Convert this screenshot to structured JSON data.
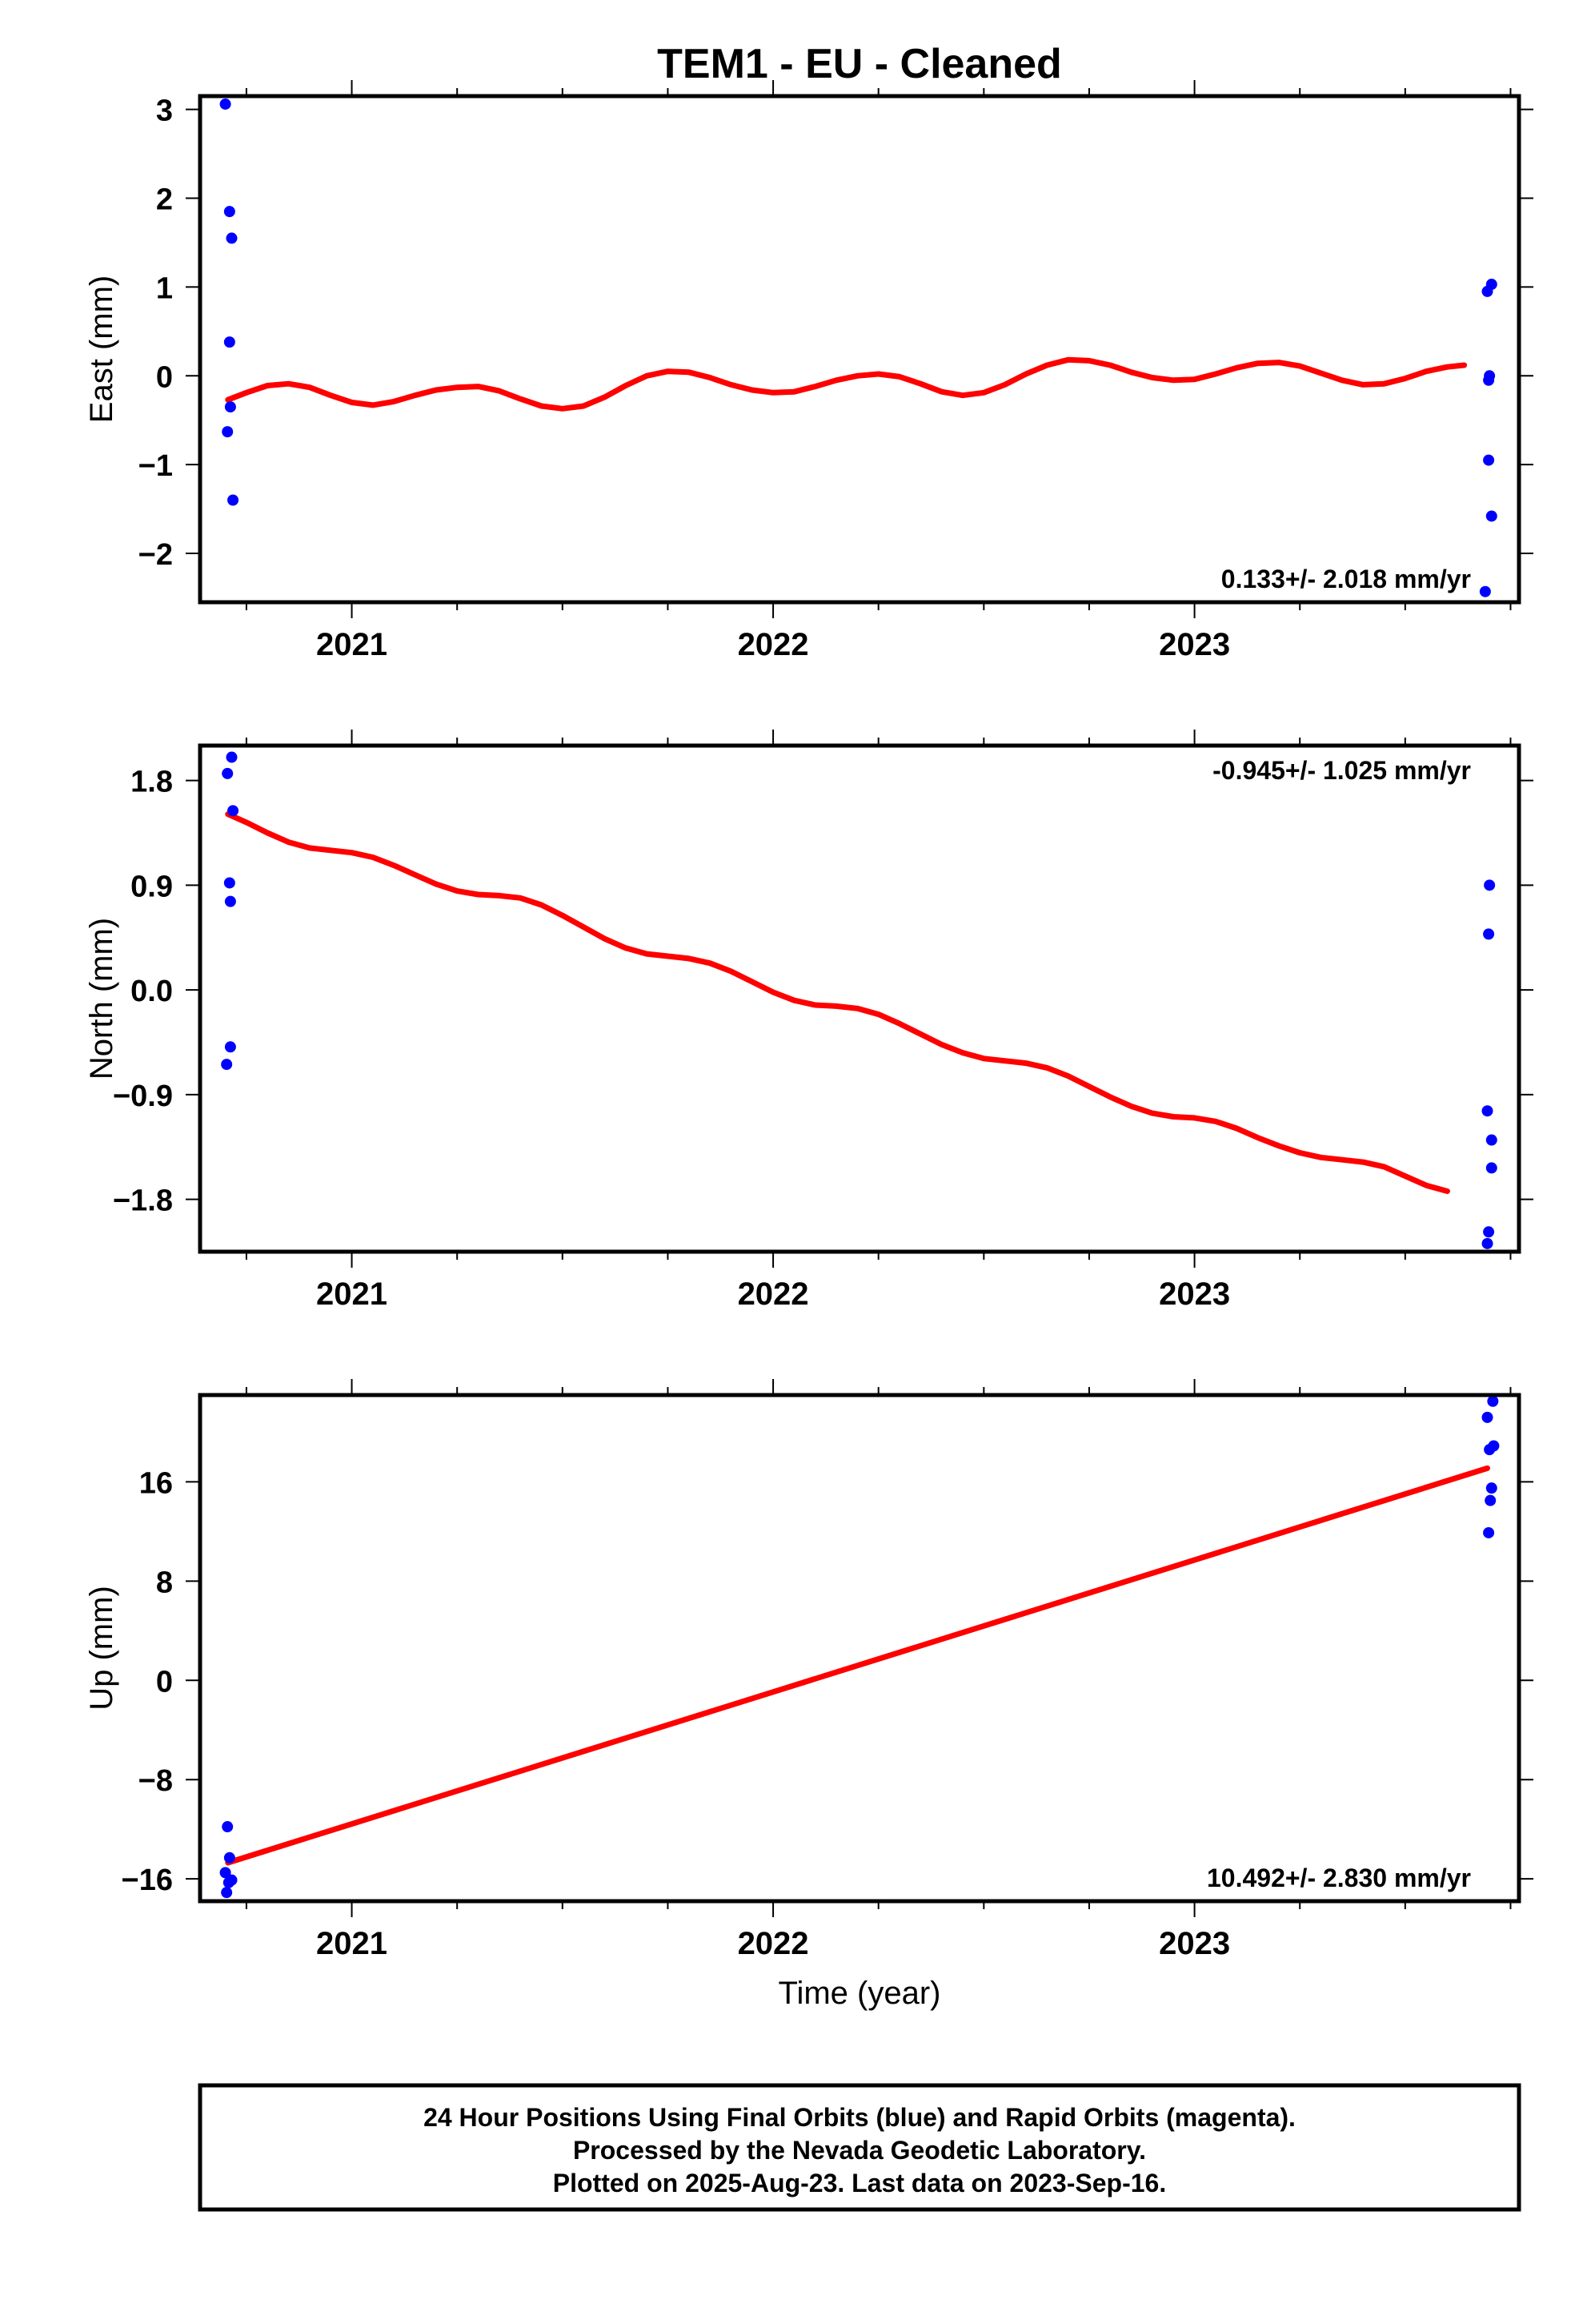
{
  "title": "TEM1  - EU - Cleaned",
  "footer": {
    "lines": [
      "24 Hour Positions Using Final Orbits (blue) and Rapid Orbits (magenta).",
      "Processed by the Nevada Geodetic Laboratory.",
      "Plotted on 2025-Aug-23. Last data on 2023-Sep-16."
    ]
  },
  "colors": {
    "points": "#0000ff",
    "fit": "#ff0000",
    "frame": "#000000"
  },
  "chart_data": [
    {
      "type": "scatter",
      "ylabel": "East (mm)",
      "xlabel": "",
      "xlim": [
        2020.64,
        2023.77
      ],
      "ylim": [
        -2.55,
        3.15
      ],
      "yticks": [
        3,
        2,
        1,
        0,
        -1,
        -2
      ],
      "ytick_labels": [
        "3",
        "2",
        "1",
        "0",
        "−1",
        "−2"
      ],
      "xticks": [
        2021,
        2022,
        2023
      ],
      "xtick_labels": [
        "2021",
        "2022",
        "2023"
      ],
      "rate_text": "0.133+/- 2.018 mm/yr",
      "rate_position": "bottom-right",
      "points": [
        [
          2020.7,
          3.06
        ],
        [
          2020.71,
          1.85
        ],
        [
          2020.715,
          1.55
        ],
        [
          2020.71,
          0.38
        ],
        [
          2020.712,
          -0.35
        ],
        [
          2020.705,
          -0.63
        ],
        [
          2020.718,
          -1.4
        ],
        [
          2023.705,
          1.03
        ],
        [
          2023.695,
          0.95
        ],
        [
          2023.7,
          0.0
        ],
        [
          2023.698,
          -0.05
        ],
        [
          2023.698,
          -0.95
        ],
        [
          2023.705,
          -1.58
        ],
        [
          2023.69,
          -2.43
        ]
      ],
      "fit": [
        [
          2020.706,
          -0.27
        ],
        [
          2020.75,
          -0.19
        ],
        [
          2020.8,
          -0.11
        ],
        [
          2020.85,
          -0.09
        ],
        [
          2020.9,
          -0.13
        ],
        [
          2020.95,
          -0.22
        ],
        [
          2021.0,
          -0.3
        ],
        [
          2021.05,
          -0.33
        ],
        [
          2021.1,
          -0.29
        ],
        [
          2021.15,
          -0.22
        ],
        [
          2021.2,
          -0.16
        ],
        [
          2021.25,
          -0.13
        ],
        [
          2021.3,
          -0.12
        ],
        [
          2021.35,
          -0.17
        ],
        [
          2021.4,
          -0.26
        ],
        [
          2021.45,
          -0.34
        ],
        [
          2021.5,
          -0.37
        ],
        [
          2021.55,
          -0.34
        ],
        [
          2021.6,
          -0.24
        ],
        [
          2021.65,
          -0.11
        ],
        [
          2021.7,
          0.0
        ],
        [
          2021.75,
          0.05
        ],
        [
          2021.8,
          0.04
        ],
        [
          2021.85,
          -0.02
        ],
        [
          2021.9,
          -0.1
        ],
        [
          2021.95,
          -0.16
        ],
        [
          2022.0,
          -0.19
        ],
        [
          2022.05,
          -0.18
        ],
        [
          2022.1,
          -0.12
        ],
        [
          2022.15,
          -0.05
        ],
        [
          2022.2,
          0.0
        ],
        [
          2022.25,
          0.02
        ],
        [
          2022.3,
          -0.01
        ],
        [
          2022.35,
          -0.09
        ],
        [
          2022.4,
          -0.18
        ],
        [
          2022.45,
          -0.22
        ],
        [
          2022.5,
          -0.19
        ],
        [
          2022.55,
          -0.1
        ],
        [
          2022.6,
          0.02
        ],
        [
          2022.65,
          0.12
        ],
        [
          2022.7,
          0.18
        ],
        [
          2022.75,
          0.17
        ],
        [
          2022.8,
          0.12
        ],
        [
          2022.85,
          0.04
        ],
        [
          2022.9,
          -0.02
        ],
        [
          2022.95,
          -0.05
        ],
        [
          2023.0,
          -0.04
        ],
        [
          2023.05,
          0.02
        ],
        [
          2023.1,
          0.09
        ],
        [
          2023.15,
          0.14
        ],
        [
          2023.2,
          0.15
        ],
        [
          2023.25,
          0.11
        ],
        [
          2023.3,
          0.03
        ],
        [
          2023.35,
          -0.05
        ],
        [
          2023.4,
          -0.1
        ],
        [
          2023.45,
          -0.09
        ],
        [
          2023.5,
          -0.03
        ],
        [
          2023.55,
          0.05
        ],
        [
          2023.6,
          0.1
        ],
        [
          2023.64,
          0.12
        ]
      ]
    },
    {
      "type": "scatter",
      "ylabel": "North (mm)",
      "xlabel": "",
      "xlim": [
        2020.64,
        2023.77
      ],
      "ylim": [
        -2.25,
        2.1
      ],
      "yticks": [
        1.8,
        0.9,
        0.0,
        -0.9,
        -1.8
      ],
      "ytick_labels": [
        "1.8",
        "0.9",
        "0.0",
        "−0.9",
        "−1.8"
      ],
      "xticks": [
        2021,
        2022,
        2023
      ],
      "xtick_labels": [
        "2021",
        "2022",
        "2023"
      ],
      "rate_text": "-0.945+/- 1.025 mm/yr",
      "rate_position": "top-right",
      "points": [
        [
          2020.715,
          2.0
        ],
        [
          2020.705,
          1.86
        ],
        [
          2020.718,
          1.54
        ],
        [
          2020.71,
          0.92
        ],
        [
          2020.712,
          0.76
        ],
        [
          2020.712,
          -0.49
        ],
        [
          2020.703,
          -0.64
        ],
        [
          2023.7,
          0.9
        ],
        [
          2023.698,
          0.48
        ],
        [
          2023.695,
          -1.04
        ],
        [
          2023.705,
          -1.29
        ],
        [
          2023.705,
          -1.53
        ],
        [
          2023.698,
          -2.08
        ],
        [
          2023.695,
          -2.18
        ]
      ],
      "fit": [
        [
          2020.706,
          1.51
        ],
        [
          2020.75,
          1.44
        ],
        [
          2020.8,
          1.35
        ],
        [
          2020.85,
          1.27
        ],
        [
          2020.9,
          1.22
        ],
        [
          2020.95,
          1.2
        ],
        [
          2021.0,
          1.18
        ],
        [
          2021.05,
          1.14
        ],
        [
          2021.1,
          1.07
        ],
        [
          2021.15,
          0.99
        ],
        [
          2021.2,
          0.91
        ],
        [
          2021.25,
          0.85
        ],
        [
          2021.3,
          0.82
        ],
        [
          2021.35,
          0.81
        ],
        [
          2021.4,
          0.79
        ],
        [
          2021.45,
          0.73
        ],
        [
          2021.5,
          0.64
        ],
        [
          2021.55,
          0.54
        ],
        [
          2021.6,
          0.44
        ],
        [
          2021.65,
          0.36
        ],
        [
          2021.7,
          0.31
        ],
        [
          2021.75,
          0.29
        ],
        [
          2021.8,
          0.27
        ],
        [
          2021.85,
          0.23
        ],
        [
          2021.9,
          0.16
        ],
        [
          2021.95,
          0.07
        ],
        [
          2022.0,
          -0.02
        ],
        [
          2022.05,
          -0.09
        ],
        [
          2022.1,
          -0.13
        ],
        [
          2022.15,
          -0.14
        ],
        [
          2022.2,
          -0.16
        ],
        [
          2022.25,
          -0.21
        ],
        [
          2022.3,
          -0.29
        ],
        [
          2022.35,
          -0.38
        ],
        [
          2022.4,
          -0.47
        ],
        [
          2022.45,
          -0.54
        ],
        [
          2022.5,
          -0.59
        ],
        [
          2022.55,
          -0.61
        ],
        [
          2022.6,
          -0.63
        ],
        [
          2022.65,
          -0.67
        ],
        [
          2022.7,
          -0.74
        ],
        [
          2022.75,
          -0.83
        ],
        [
          2022.8,
          -0.92
        ],
        [
          2022.85,
          -1.0
        ],
        [
          2022.9,
          -1.06
        ],
        [
          2022.95,
          -1.09
        ],
        [
          2023.0,
          -1.1
        ],
        [
          2023.05,
          -1.13
        ],
        [
          2023.1,
          -1.19
        ],
        [
          2023.15,
          -1.27
        ],
        [
          2023.2,
          -1.34
        ],
        [
          2023.25,
          -1.4
        ],
        [
          2023.3,
          -1.44
        ],
        [
          2023.35,
          -1.46
        ],
        [
          2023.4,
          -1.48
        ],
        [
          2023.45,
          -1.52
        ],
        [
          2023.5,
          -1.6
        ],
        [
          2023.55,
          -1.68
        ],
        [
          2023.6,
          -1.73
        ]
      ]
    },
    {
      "type": "scatter",
      "ylabel": "Up (mm)",
      "xlabel": "Time (year)",
      "xlim": [
        2020.64,
        2023.77
      ],
      "ylim": [
        -17.8,
        23.0
      ],
      "yticks": [
        16,
        8,
        0,
        -8,
        -16
      ],
      "ytick_labels": [
        "16",
        "8",
        "0",
        "−8",
        "−16"
      ],
      "xticks": [
        2021,
        2022,
        2023
      ],
      "xtick_labels": [
        "2021",
        "2022",
        "2023"
      ],
      "rate_text": "10.492+/- 2.830 mm/yr",
      "rate_position": "bottom-right",
      "points": [
        [
          2020.705,
          -11.8
        ],
        [
          2020.71,
          -14.3
        ],
        [
          2020.7,
          -15.5
        ],
        [
          2020.715,
          -16.1
        ],
        [
          2020.708,
          -16.3
        ],
        [
          2020.703,
          -17.1
        ],
        [
          2023.708,
          22.5
        ],
        [
          2023.695,
          21.2
        ],
        [
          2023.71,
          18.9
        ],
        [
          2023.7,
          18.6
        ],
        [
          2023.705,
          15.5
        ],
        [
          2023.702,
          14.5
        ],
        [
          2023.698,
          11.9
        ]
      ],
      "fit": [
        [
          2020.706,
          -14.7
        ],
        [
          2023.695,
          17.1
        ]
      ]
    }
  ]
}
